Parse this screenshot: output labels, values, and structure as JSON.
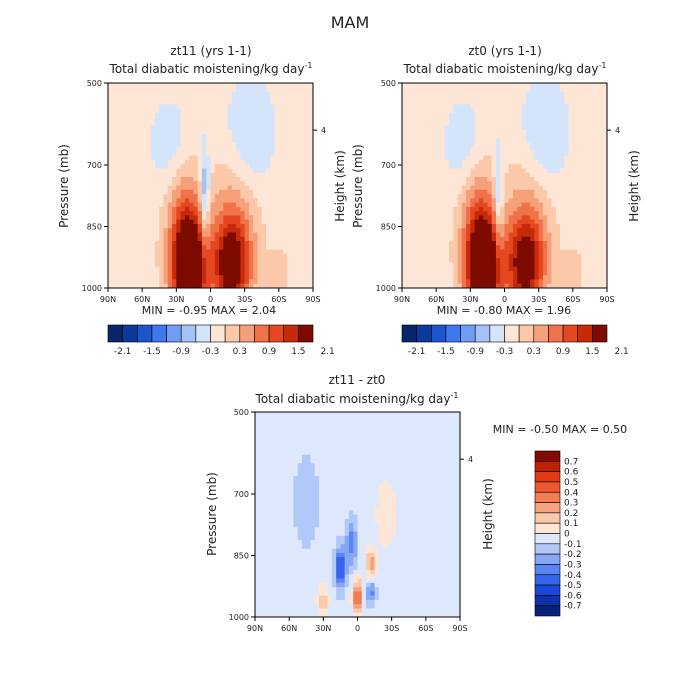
{
  "figure_title": "MAM",
  "panels": [
    {
      "id": "zt11",
      "title": "zt11 (yrs 1-1)",
      "subtitle": "Total diabatic moistening/kg day",
      "subtitle_exp": "-1",
      "ylabel": "Pressure (mb)",
      "right_label": "Height (km)",
      "min_max": "MIN =  -0.95    MAX =   2.04"
    },
    {
      "id": "zt0",
      "title": "zt0 (yrs 1-1)",
      "subtitle": "Total diabatic moistening/kg day",
      "subtitle_exp": "-1",
      "ylabel": "Pressure (mb)",
      "right_label": "Height (km)",
      "min_max": "MIN =  -0.80    MAX =   1.96"
    },
    {
      "id": "diff",
      "title": "zt11 - zt0",
      "subtitle": "Total diabatic moistening/kg day",
      "subtitle_exp": "-1",
      "ylabel": "Pressure (mb)",
      "right_label": "Height (km)",
      "min_max": "MIN =   -0.50    MAX =    0.50"
    }
  ],
  "colors": {
    "top_scale": [
      "#08246b",
      "#0c3a9c",
      "#1d55cf",
      "#3f78ec",
      "#6f9df3",
      "#a4c2f6",
      "#d4e4fb",
      "#fde6d5",
      "#fbc9a9",
      "#f6a07a",
      "#f07248",
      "#e54821",
      "#c62a0b",
      "#7d0b00"
    ],
    "diff_scale": [
      "#08217a",
      "#0c33a8",
      "#1b47d8",
      "#3565ec",
      "#5a85f1",
      "#86a7f3",
      "#b2c8f6",
      "#dde8fc",
      "#fde6d5",
      "#fbcaa8",
      "#f7a47e",
      "#f27c54",
      "#ec5830",
      "#e03b15",
      "#bf2108",
      "#820a00"
    ]
  },
  "chart_data": [
    {
      "type": "heatmap",
      "title": "zt11 (yrs 1-1)",
      "xlabel": "",
      "ylabel": "Pressure (mb)",
      "xticks": [
        "90N",
        "60N",
        "30N",
        "0",
        "30S",
        "60S",
        "90S"
      ],
      "yticks": [
        500,
        700,
        850,
        1000
      ],
      "right_axis": {
        "label": "Height (km)",
        "ticks": [
          "4"
        ]
      },
      "xlim": [
        90,
        -90
      ],
      "ylim": [
        1000,
        500
      ],
      "min": -0.95,
      "max": 2.04,
      "colorbar": {
        "labels": [
          "-2.1",
          "-1.5",
          "-0.9",
          "-0.3",
          "0.3",
          "0.9",
          "1.5",
          "2.1"
        ],
        "orientation": "horizontal"
      },
      "features": [
        {
          "lat": 18,
          "p": 960,
          "value": 2.0,
          "lat_spread": 14,
          "p_spread": 120
        },
        {
          "lat": 22,
          "p": 880,
          "value": 1.2,
          "lat_spread": 16,
          "p_spread": 170
        },
        {
          "lat": -18,
          "p": 950,
          "value": 1.5,
          "lat_spread": 16,
          "p_spread": 110
        },
        {
          "lat": -20,
          "p": 880,
          "value": 0.8,
          "lat_spread": 20,
          "p_spread": 170
        },
        {
          "lat": 5,
          "p": 780,
          "value": -0.95,
          "lat_spread": 4,
          "p_spread": 120
        },
        {
          "lat": -60,
          "p": 960,
          "value": 0.4,
          "lat_spread": 8,
          "p_spread": 50
        },
        {
          "lat": 35,
          "p": 650,
          "value": -0.4,
          "lat_spread": 20,
          "p_spread": 120
        },
        {
          "lat": -35,
          "p": 620,
          "value": -0.5,
          "lat_spread": 22,
          "p_spread": 140
        }
      ]
    },
    {
      "type": "heatmap",
      "title": "zt0 (yrs 1-1)",
      "xlabel": "",
      "ylabel": "Pressure (mb)",
      "xticks": [
        "90N",
        "60N",
        "30N",
        "0",
        "30S",
        "60S",
        "90S"
      ],
      "yticks": [
        500,
        700,
        850,
        1000
      ],
      "right_axis": {
        "label": "Height (km)",
        "ticks": [
          "4"
        ]
      },
      "xlim": [
        90,
        -90
      ],
      "ylim": [
        1000,
        500
      ],
      "min": -0.8,
      "max": 1.96,
      "colorbar": {
        "labels": [
          "-2.1",
          "-1.5",
          "-0.9",
          "-0.3",
          "0.3",
          "0.9",
          "1.5",
          "2.1"
        ],
        "orientation": "horizontal"
      },
      "features": [
        {
          "lat": 18,
          "p": 960,
          "value": 1.95,
          "lat_spread": 14,
          "p_spread": 120
        },
        {
          "lat": 22,
          "p": 880,
          "value": 1.2,
          "lat_spread": 16,
          "p_spread": 170
        },
        {
          "lat": -18,
          "p": 950,
          "value": 1.4,
          "lat_spread": 16,
          "p_spread": 110
        },
        {
          "lat": -20,
          "p": 880,
          "value": 0.8,
          "lat_spread": 20,
          "p_spread": 170
        },
        {
          "lat": 5,
          "p": 780,
          "value": -0.8,
          "lat_spread": 4,
          "p_spread": 120
        },
        {
          "lat": -60,
          "p": 960,
          "value": 0.4,
          "lat_spread": 8,
          "p_spread": 50
        },
        {
          "lat": 35,
          "p": 650,
          "value": -0.4,
          "lat_spread": 20,
          "p_spread": 120
        },
        {
          "lat": -35,
          "p": 620,
          "value": -0.5,
          "lat_spread": 22,
          "p_spread": 140
        }
      ]
    },
    {
      "type": "heatmap",
      "title": "zt11 - zt0",
      "xlabel": "",
      "ylabel": "Pressure (mb)",
      "xticks": [
        "90N",
        "60N",
        "30N",
        "0",
        "30S",
        "60S",
        "90S"
      ],
      "yticks": [
        500,
        700,
        850,
        1000
      ],
      "right_axis": {
        "label": "Height (km)",
        "ticks": [
          "4"
        ]
      },
      "xlim": [
        90,
        -90
      ],
      "ylim": [
        1000,
        500
      ],
      "min": -0.5,
      "max": 0.5,
      "colorbar": {
        "labels": [
          "0.7",
          "0.6",
          "0.5",
          "0.4",
          "0.3",
          "0.2",
          "0.1",
          "0",
          "-0.1",
          "-0.2",
          "-0.3",
          "-0.4",
          "-0.5",
          "-0.6",
          "-0.7"
        ],
        "orientation": "vertical"
      },
      "features": [
        {
          "lat": 15,
          "p": 880,
          "value": -0.5,
          "lat_spread": 5,
          "p_spread": 50
        },
        {
          "lat": 5,
          "p": 820,
          "value": -0.3,
          "lat_spread": 5,
          "p_spread": 60
        },
        {
          "lat": 0,
          "p": 950,
          "value": 0.5,
          "lat_spread": 4,
          "p_spread": 40
        },
        {
          "lat": -12,
          "p": 870,
          "value": 0.35,
          "lat_spread": 4,
          "p_spread": 35
        },
        {
          "lat": -12,
          "p": 940,
          "value": -0.3,
          "lat_spread": 4,
          "p_spread": 30
        },
        {
          "lat": 30,
          "p": 960,
          "value": 0.2,
          "lat_spread": 5,
          "p_spread": 40
        },
        {
          "lat": -25,
          "p": 750,
          "value": 0.15,
          "lat_spread": 8,
          "p_spread": 80
        },
        {
          "lat": 45,
          "p": 720,
          "value": -0.12,
          "lat_spread": 12,
          "p_spread": 120
        }
      ]
    }
  ]
}
